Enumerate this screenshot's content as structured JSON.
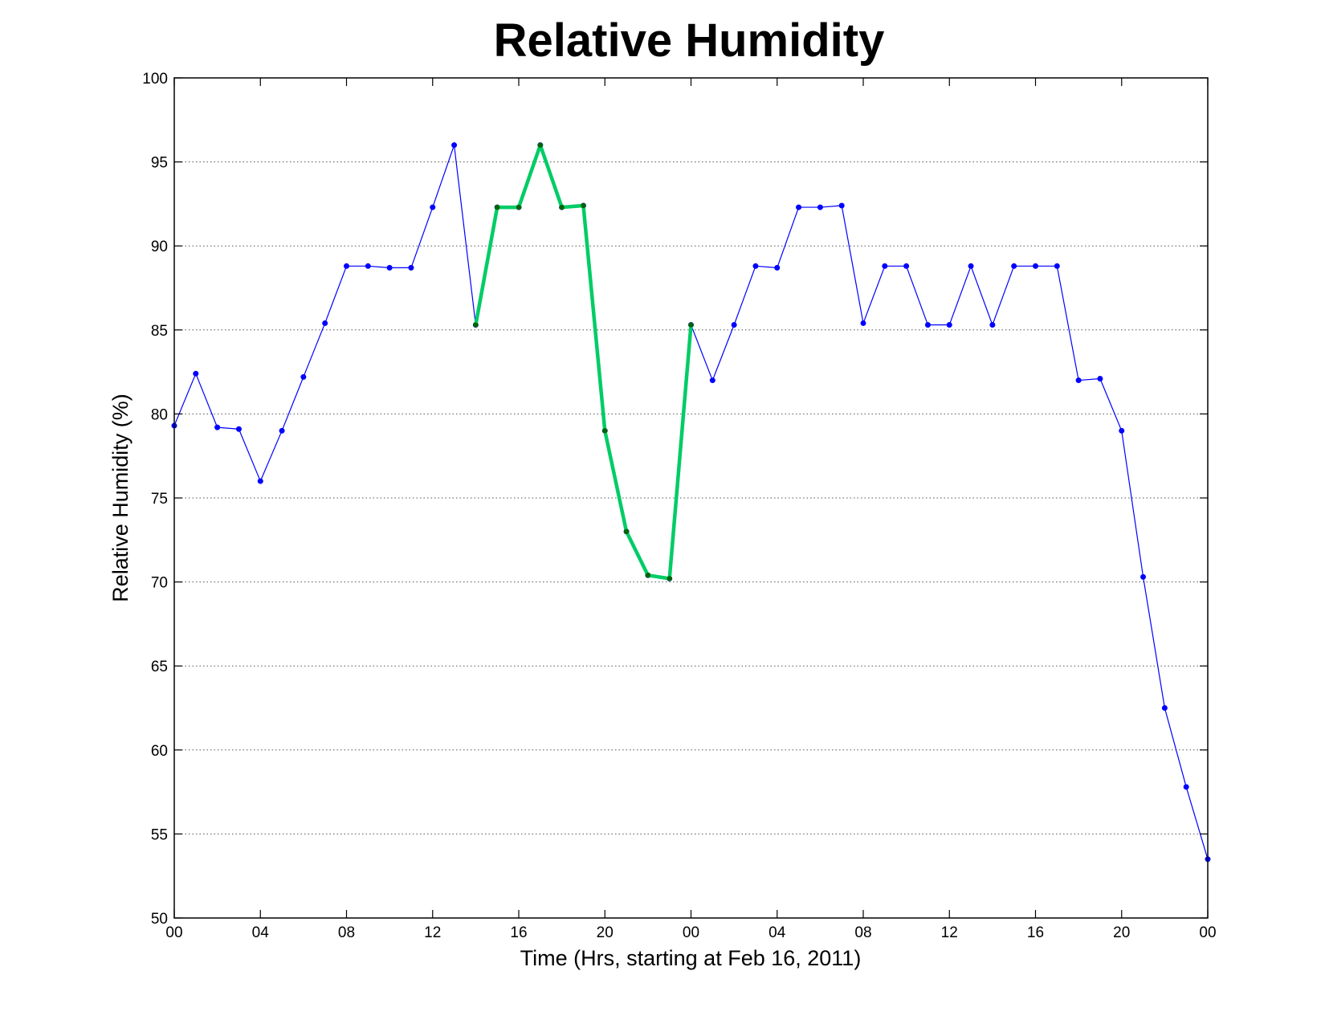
{
  "chart_data": {
    "type": "line",
    "title": "Relative Humidity",
    "xlabel": "Time (Hrs, starting at Feb 16, 2011)",
    "ylabel": "Relative Humidity (%)",
    "xlim": [
      0,
      48
    ],
    "ylim": [
      50,
      100
    ],
    "grid": "y-dotted",
    "x_ticks": [
      0,
      4,
      8,
      12,
      16,
      20,
      24,
      28,
      32,
      36,
      40,
      44,
      48
    ],
    "x_tick_labels": [
      "00",
      "04",
      "08",
      "12",
      "16",
      "20",
      "00",
      "04",
      "08",
      "12",
      "16",
      "20",
      "00"
    ],
    "y_ticks": [
      50,
      55,
      60,
      65,
      70,
      75,
      80,
      85,
      90,
      95,
      100
    ],
    "x": [
      0,
      1,
      2,
      3,
      4,
      5,
      6,
      7,
      8,
      9,
      10,
      11,
      12,
      13,
      14,
      15,
      16,
      17,
      18,
      19,
      20,
      21,
      22,
      23,
      24,
      25,
      26,
      27,
      28,
      29,
      30,
      31,
      32,
      33,
      34,
      35,
      36,
      37,
      38,
      39,
      40,
      41,
      42,
      43,
      44,
      45,
      46,
      47,
      48
    ],
    "series": [
      {
        "color": "#0000ff",
        "marker_color": "#0000ff",
        "values": [
          79.3,
          82.4,
          79.2,
          79.1,
          76.0,
          79.0,
          82.2,
          85.4,
          88.8,
          88.8,
          88.7,
          88.7,
          92.3,
          96.0,
          85.3,
          92.3,
          92.3,
          96.0,
          92.3,
          92.4,
          79.0,
          73.0,
          70.4,
          70.2,
          85.3,
          82.0,
          85.3,
          88.8,
          88.7,
          92.3,
          92.3,
          92.4,
          85.4,
          88.8,
          88.8,
          85.3,
          85.3,
          88.8,
          85.3,
          88.8,
          88.8,
          88.8,
          82.0,
          82.1,
          79.0,
          70.3,
          62.5,
          57.8,
          53.5
        ]
      },
      {
        "color": "#00cc66",
        "marker_color": "#006600",
        "x": [
          14,
          15,
          16,
          17,
          18,
          19,
          20,
          21,
          22,
          23,
          24
        ],
        "values": [
          85.3,
          92.3,
          92.3,
          96.0,
          92.3,
          92.4,
          79.0,
          73.0,
          70.4,
          70.2,
          85.3
        ]
      }
    ]
  }
}
